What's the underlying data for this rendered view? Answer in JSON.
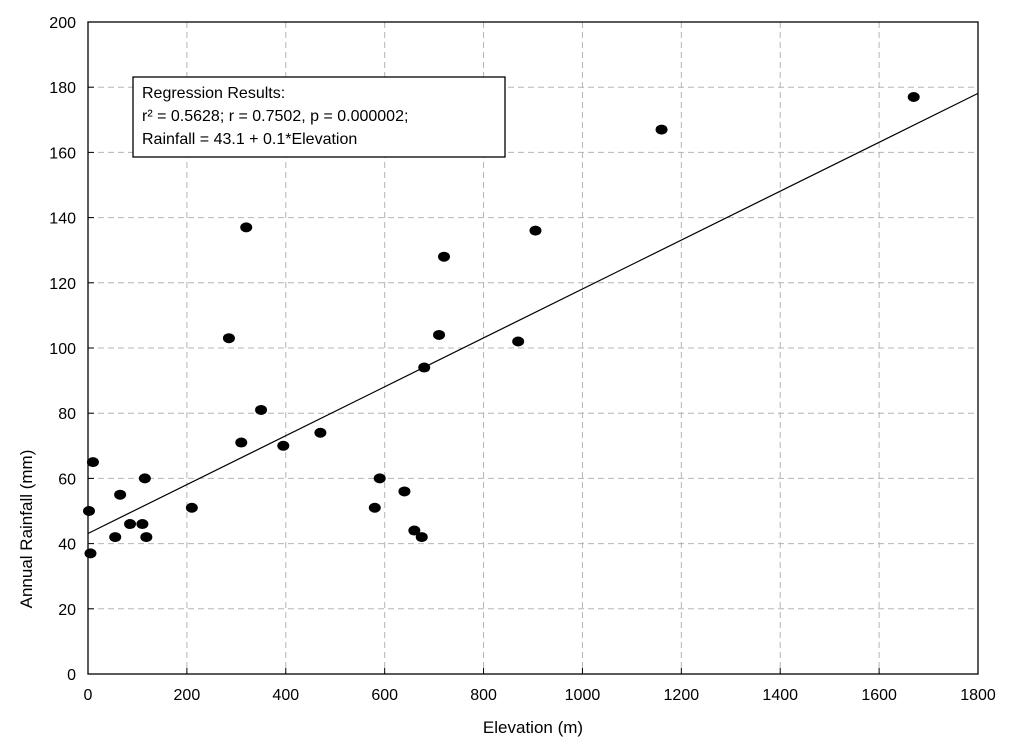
{
  "chart_data": {
    "type": "scatter",
    "xlabel": "Elevation (m)",
    "ylabel": "Annual Rainfall (mm)",
    "xlim": [
      0,
      1800
    ],
    "ylim": [
      0,
      200
    ],
    "x_ticks": [
      "0",
      "200",
      "400",
      "600",
      "800",
      "1000",
      "1200",
      "1400",
      "1600",
      "1800"
    ],
    "y_ticks": [
      "0",
      "20",
      "40",
      "60",
      "80",
      "100",
      "120",
      "140",
      "160",
      "180",
      "200"
    ],
    "grid": true,
    "regression": {
      "intercept": 43.1,
      "slope": 0.075,
      "box_title": "Regression Results:",
      "stats_line": "r² = 0.5628;  r = 0.7502, p = 0.000002;",
      "equation_line": "Rainfall = 43.1 + 0.1*Elevation"
    },
    "points": [
      {
        "x": 2,
        "y": 50
      },
      {
        "x": 5,
        "y": 37
      },
      {
        "x": 10,
        "y": 65
      },
      {
        "x": 55,
        "y": 42
      },
      {
        "x": 65,
        "y": 55
      },
      {
        "x": 85,
        "y": 46
      },
      {
        "x": 110,
        "y": 46
      },
      {
        "x": 115,
        "y": 60
      },
      {
        "x": 118,
        "y": 42
      },
      {
        "x": 210,
        "y": 51
      },
      {
        "x": 285,
        "y": 103
      },
      {
        "x": 310,
        "y": 71
      },
      {
        "x": 320,
        "y": 137
      },
      {
        "x": 350,
        "y": 81
      },
      {
        "x": 395,
        "y": 70
      },
      {
        "x": 470,
        "y": 74
      },
      {
        "x": 580,
        "y": 51
      },
      {
        "x": 590,
        "y": 60
      },
      {
        "x": 640,
        "y": 56
      },
      {
        "x": 660,
        "y": 44
      },
      {
        "x": 675,
        "y": 42
      },
      {
        "x": 680,
        "y": 94
      },
      {
        "x": 710,
        "y": 104
      },
      {
        "x": 720,
        "y": 128
      },
      {
        "x": 870,
        "y": 102
      },
      {
        "x": 905,
        "y": 136
      },
      {
        "x": 1160,
        "y": 167
      },
      {
        "x": 1670,
        "y": 177
      }
    ],
    "colors": {
      "points": "#000000",
      "grid": "#b5b5b5",
      "axis": "#000000",
      "line": "#000000"
    }
  }
}
